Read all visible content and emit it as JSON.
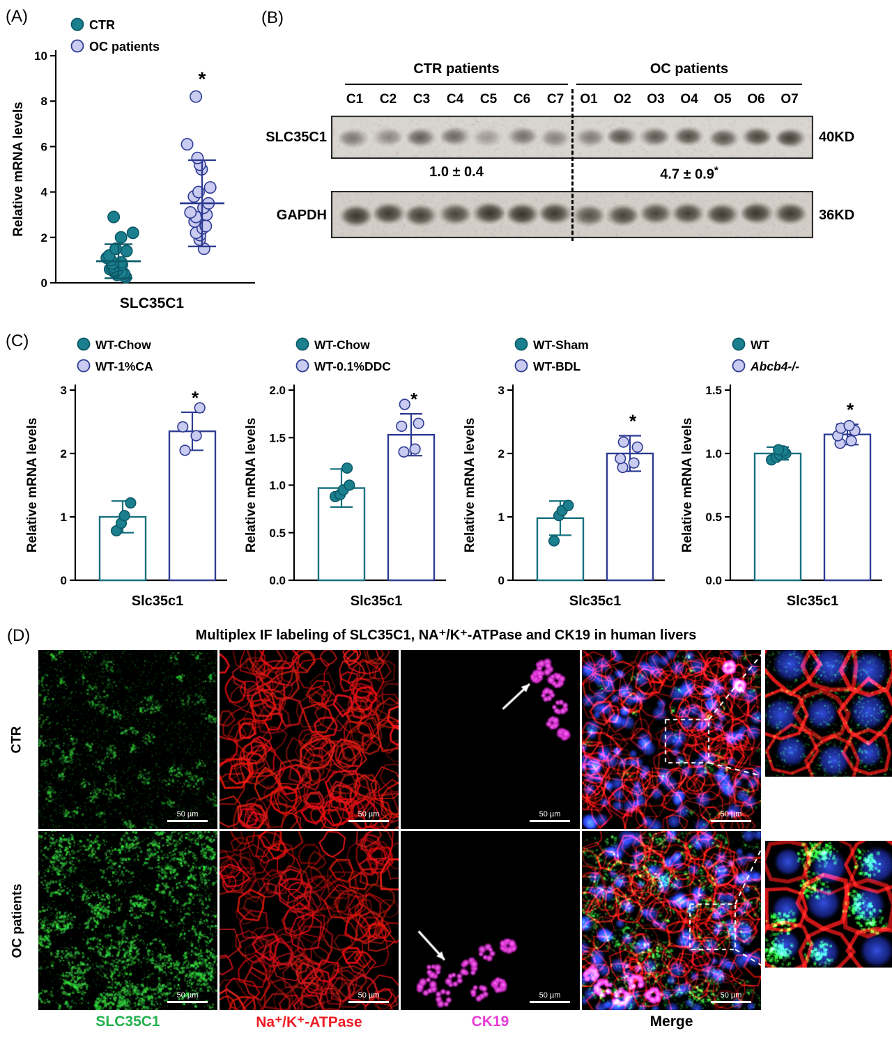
{
  "panels": {
    "a_label": "(A)",
    "b_label": "(B)",
    "c_label": "(C)",
    "d_label": "(D)"
  },
  "colors": {
    "teal_fill": "#1b7f8e",
    "teal_stroke": "#0c5a68",
    "lavender_fill": "#c9cbf0",
    "navy_stroke": "#2e3b92",
    "green_label": "#23b14d",
    "red_label": "#ed1c24",
    "magenta_label": "#e83bd6"
  },
  "chart_data": [
    {
      "id": "A",
      "type": "scatter",
      "ylabel": "Relative mRNA levels",
      "xlabel": "SLC35C1",
      "ylim": [
        0,
        10
      ],
      "yticks": [
        "0",
        "2",
        "4",
        "6",
        "8",
        "10"
      ],
      "groups": [
        {
          "label": "CTR",
          "style": "teal",
          "mean": 0.95,
          "whisker_low": 0.2,
          "whisker_high": 1.7,
          "values": [
            0.25,
            0.3,
            0.35,
            0.4,
            0.45,
            0.5,
            0.55,
            0.55,
            0.6,
            0.65,
            0.7,
            0.75,
            0.8,
            0.85,
            0.9,
            1.0,
            1.1,
            1.2,
            1.4,
            1.5,
            2.0,
            2.2,
            2.9
          ]
        },
        {
          "label": "OC patients",
          "style": "lavender",
          "mean": 3.5,
          "whisker_low": 1.6,
          "whisker_high": 5.4,
          "sig": "*",
          "values": [
            1.5,
            1.9,
            2.1,
            2.2,
            2.4,
            2.5,
            2.7,
            2.9,
            3.0,
            3.1,
            3.3,
            3.5,
            3.8,
            4.0,
            4.2,
            5.0,
            5.2,
            5.5,
            6.1,
            8.2
          ]
        }
      ]
    },
    {
      "id": "C1",
      "type": "bar",
      "ylabel": "Relative mRNA levels",
      "xlabel": "Slc35c1",
      "ylim": [
        0,
        3
      ],
      "yticks": [
        "0",
        "1",
        "2",
        "3"
      ],
      "groups": [
        {
          "label": "WT-Chow",
          "style": "teal",
          "mean": 1.0,
          "err": 0.25,
          "values": [
            0.78,
            0.9,
            1.02,
            1.22
          ]
        },
        {
          "label": "WT-1%CA",
          "style": "lavender",
          "mean": 2.35,
          "err": 0.3,
          "sig": "*",
          "values": [
            2.05,
            2.28,
            2.42,
            2.72
          ]
        }
      ]
    },
    {
      "id": "C2",
      "type": "bar",
      "ylabel": "Relative mRNA levels",
      "xlabel": "Slc35c1",
      "ylim": [
        0,
        2
      ],
      "yticks": [
        "0.0",
        "0.5",
        "1.0",
        "1.5",
        "2.0"
      ],
      "groups": [
        {
          "label": "WT-Chow",
          "style": "teal",
          "mean": 0.97,
          "err": 0.2,
          "values": [
            0.88,
            0.9,
            0.95,
            1.0,
            1.18
          ]
        },
        {
          "label": "WT-0.1%DDC",
          "style": "lavender",
          "mean": 1.53,
          "err": 0.22,
          "sig": "*",
          "values": [
            1.35,
            1.38,
            1.62,
            1.65,
            1.85
          ]
        }
      ]
    },
    {
      "id": "C3",
      "type": "bar",
      "ylabel": "Relative mRNA levels",
      "xlabel": "Slc35c1",
      "ylim": [
        0,
        3
      ],
      "yticks": [
        "0",
        "1",
        "2",
        "3"
      ],
      "groups": [
        {
          "label": "WT-Sham",
          "style": "teal",
          "mean": 0.98,
          "err": 0.27,
          "values": [
            0.62,
            1.02,
            1.1,
            1.18
          ]
        },
        {
          "label": "WT-BDL",
          "style": "lavender",
          "mean": 2.0,
          "err": 0.28,
          "sig": "*",
          "values": [
            1.78,
            1.85,
            1.92,
            2.1,
            2.18
          ]
        }
      ]
    },
    {
      "id": "C4",
      "type": "bar",
      "ylabel": "Relative mRNA levels",
      "xlabel": "Slc35c1",
      "ylim": [
        0,
        1.5
      ],
      "yticks": [
        "0.0",
        "0.5",
        "1.0",
        "1.5"
      ],
      "groups": [
        {
          "label": "WT",
          "style": "teal",
          "mean": 1.0,
          "err": 0.05,
          "values": [
            0.95,
            0.97,
            0.99,
            1.0,
            1.02,
            1.03
          ]
        },
        {
          "label": "Abcb4-/-",
          "style": "lavender",
          "italic": true,
          "mean": 1.15,
          "err": 0.08,
          "sig": "*",
          "values": [
            1.08,
            1.1,
            1.14,
            1.18,
            1.2,
            1.22
          ]
        }
      ]
    }
  ],
  "western_blot": {
    "group_headers": [
      "CTR patients",
      "OC patients"
    ],
    "lanes": [
      "C1",
      "C2",
      "C3",
      "C4",
      "C5",
      "C6",
      "C7",
      "O1",
      "O2",
      "O3",
      "O4",
      "O5",
      "O6",
      "O7"
    ],
    "rows": [
      {
        "label": "SLC35C1",
        "mw": "40KD",
        "intensities": [
          0.38,
          0.3,
          0.52,
          0.46,
          0.22,
          0.42,
          0.33,
          0.36,
          0.6,
          0.55,
          0.65,
          0.6,
          0.7,
          0.75
        ]
      },
      {
        "label": "GAPDH",
        "mw": "36KD",
        "intensities": [
          0.85,
          0.8,
          0.75,
          0.7,
          0.88,
          0.9,
          0.82,
          0.6,
          0.72,
          0.7,
          0.75,
          0.8,
          0.85,
          0.8
        ]
      }
    ],
    "quantification": [
      {
        "value": "1.0 ± 0.4",
        "sig": ""
      },
      {
        "value": "4.7 ± 0.9",
        "sig": "*"
      }
    ]
  },
  "panel_d": {
    "title": "Multiplex IF labeling of SLC35C1, NA⁺/K⁺-ATPase and CK19 in human livers",
    "row_labels": [
      "CTR",
      "OC patients"
    ],
    "channel_labels": [
      "SLC35C1",
      "Na⁺/K⁺-ATPase",
      "CK19",
      "Merge"
    ],
    "channel_colors": [
      "#23b14d",
      "#ed1c24",
      "#e83bd6",
      "#000000"
    ],
    "scale_bar_text": "50 µm"
  }
}
